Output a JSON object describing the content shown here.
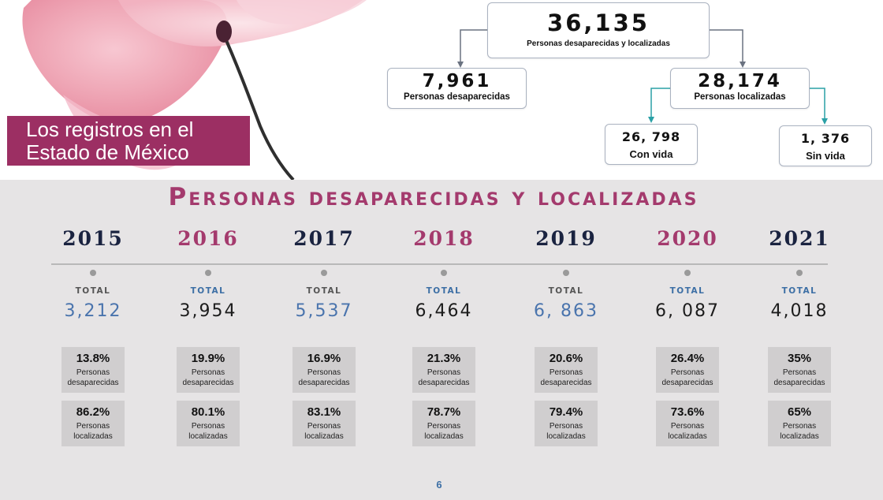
{
  "title": {
    "line1": "Los registros en el",
    "line2": "Estado de México"
  },
  "tree": {
    "root": {
      "value": "36,135",
      "label": "Personas desaparecidas y localizadas"
    },
    "missing": {
      "value": "7,961",
      "label": "Personas desaparecidas"
    },
    "located": {
      "value": "28,174",
      "label": "Personas localizadas"
    },
    "alive": {
      "value": "26, 798",
      "label": "Con vida"
    },
    "dead": {
      "value": "1, 376",
      "label": "Sin vida"
    }
  },
  "section_title": "Personas desaparecidas y localizadas",
  "total_label": "TOTAL",
  "missing_label": {
    "line1": "Personas",
    "line2": "desaparecidas"
  },
  "located_label": {
    "line1": "Personas",
    "line2": "localizadas"
  },
  "years": [
    {
      "year": "2015",
      "total": "3,212",
      "missing_pct": "13.8%",
      "located_pct": "86.2%"
    },
    {
      "year": "2016",
      "total": "3,954",
      "missing_pct": "19.9%",
      "located_pct": "80.1%"
    },
    {
      "year": "2017",
      "total": "5,537",
      "missing_pct": "16.9%",
      "located_pct": "83.1%"
    },
    {
      "year": "2018",
      "total": "6,464",
      "missing_pct": "21.3%",
      "located_pct": "78.7%"
    },
    {
      "year": "2019",
      "total": "6, 863",
      "missing_pct": "20.6%",
      "located_pct": "79.4%"
    },
    {
      "year": "2020",
      "total": "6, 087",
      "missing_pct": "26.4%",
      "located_pct": "73.6%"
    },
    {
      "year": "2021",
      "total": "4,018",
      "missing_pct": "35%",
      "located_pct": "65%"
    }
  ],
  "page_number": "6",
  "colors": {
    "accent_pink": "#a43a6d",
    "title_box": "#9c2f63",
    "navy": "#1a2340",
    "blue": "#4a74ad",
    "connector_teal": "#2aa0a6",
    "connector_gray": "#6a7280"
  }
}
